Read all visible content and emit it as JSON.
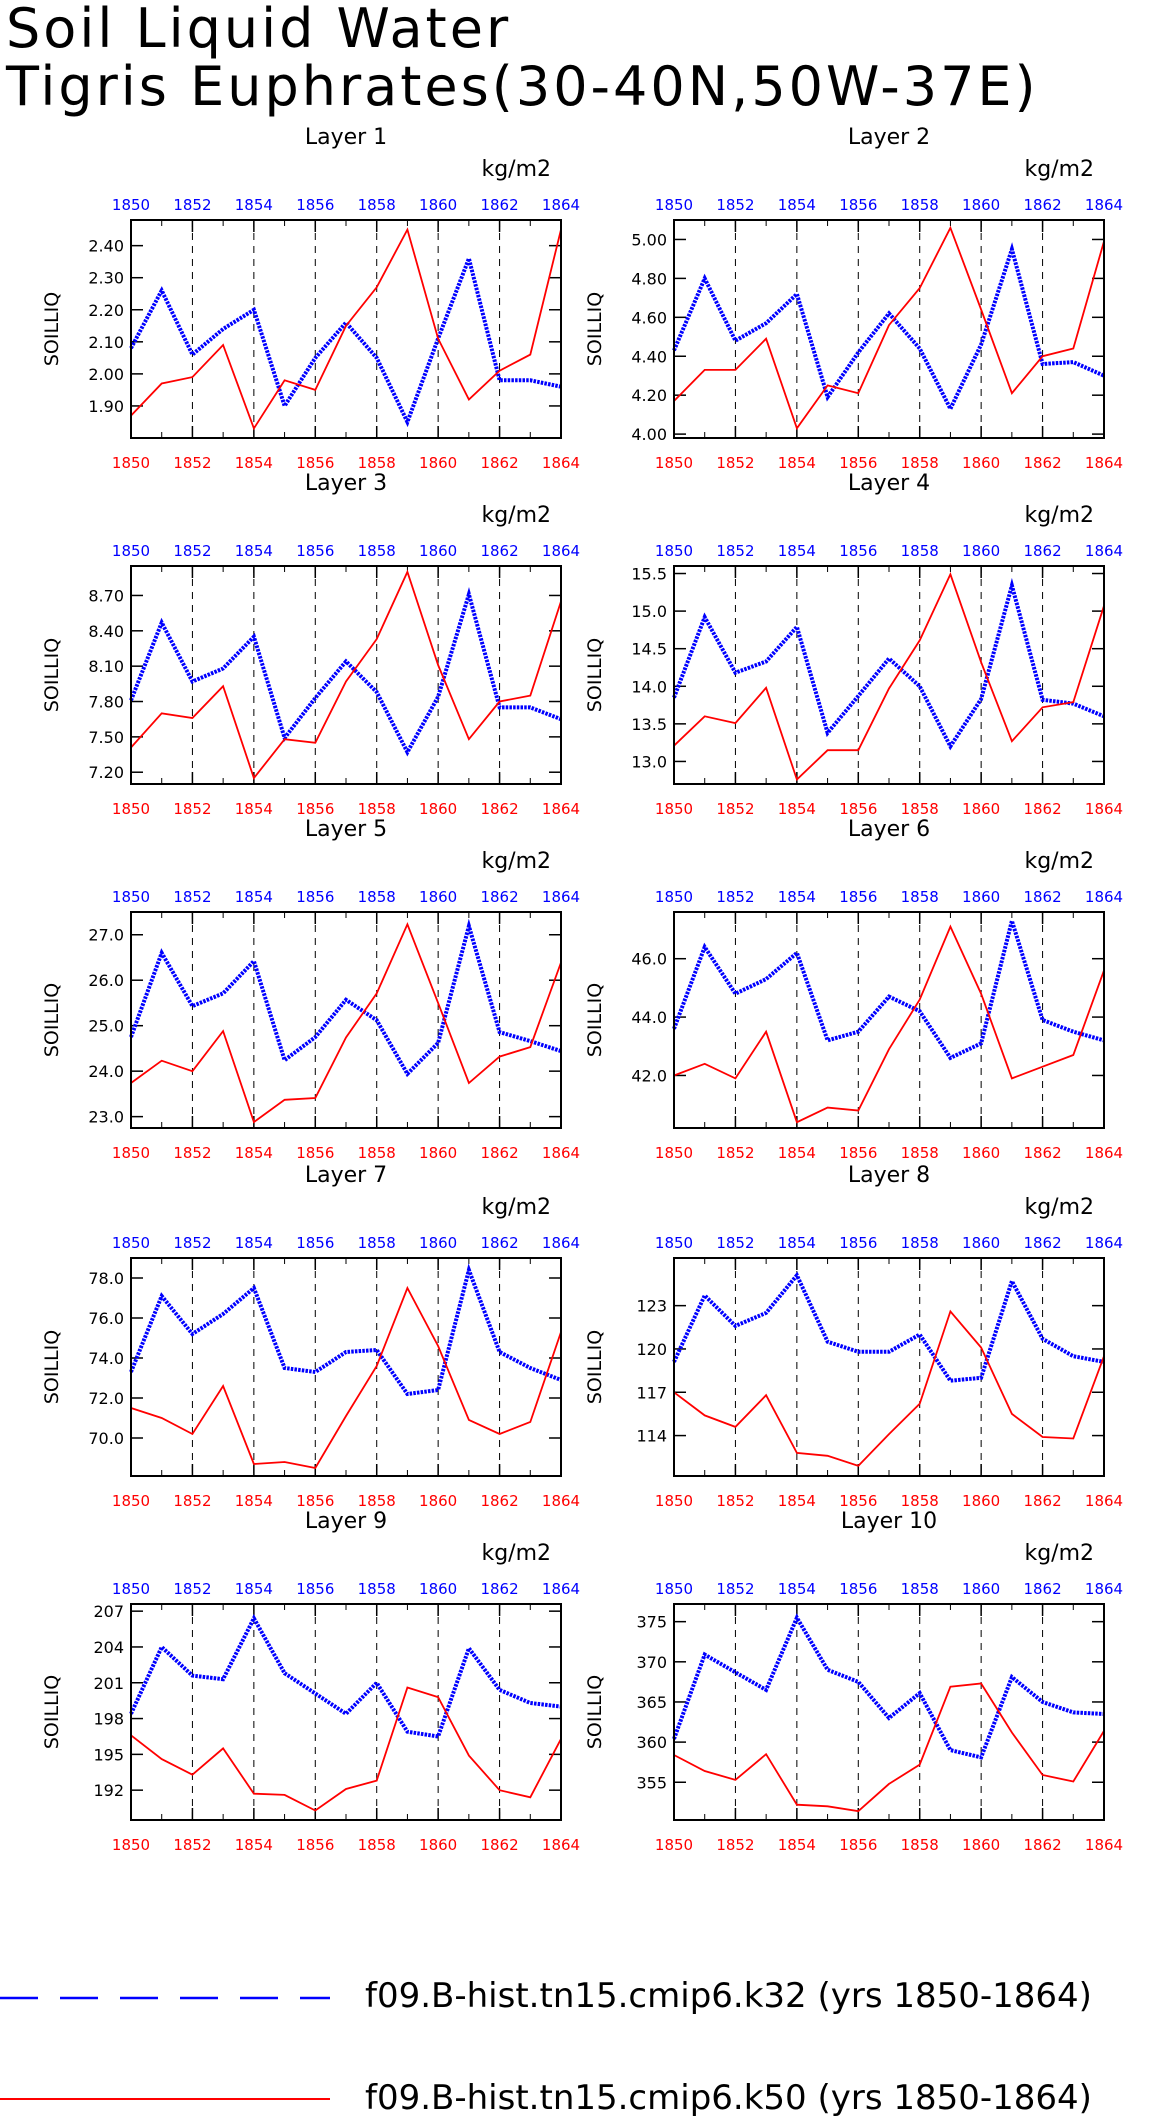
{
  "title": [
    "Soil Liquid Water",
    "Tigris Euphrates(30-40N,50W-37E)"
  ],
  "colors": {
    "blue": "#0000ff",
    "red": "#ff0000",
    "axis": "#000000"
  },
  "legend": [
    {
      "label": "f09.B-hist.tn15.cmip6.k32 (yrs 1850-1864)",
      "color": "#0000ff",
      "style": "dashed"
    },
    {
      "label": "f09.B-hist.tn15.cmip6.k50 (yrs 1850-1864)",
      "color": "#ff0000",
      "style": "solid"
    }
  ],
  "chart_data": [
    {
      "type": "line",
      "title": "Layer 1",
      "ylabel": "SOILLIQ",
      "units": "kg/m2",
      "ylim": [
        1.8,
        2.48
      ],
      "yticks": [
        1.9,
        2.0,
        2.1,
        2.2,
        2.3,
        2.4
      ],
      "ydec": 2,
      "x": [
        1850,
        1851,
        1852,
        1853,
        1854,
        1855,
        1856,
        1857,
        1858,
        1859,
        1860,
        1861,
        1862,
        1863,
        1864
      ],
      "xticks": [
        1850,
        1852,
        1854,
        1856,
        1858,
        1860,
        1862,
        1864
      ],
      "vgrid": [
        1852,
        1854,
        1856,
        1858,
        1860,
        1862
      ],
      "series": [
        {
          "name": "f09.B-hist.tn15.cmip6.k32 (yrs 1850-1864)",
          "color": "#0000ff",
          "style": "dotted",
          "values": [
            2.08,
            2.26,
            2.06,
            2.14,
            2.2,
            1.9,
            2.05,
            2.16,
            2.05,
            1.85,
            2.11,
            2.36,
            1.98,
            1.98,
            1.96
          ]
        },
        {
          "name": "f09.B-hist.tn15.cmip6.k50 (yrs 1850-1864)",
          "color": "#ff0000",
          "style": "solid",
          "values": [
            1.87,
            1.97,
            1.99,
            2.09,
            1.83,
            1.98,
            1.95,
            2.15,
            2.27,
            2.45,
            2.11,
            1.92,
            2.01,
            2.06,
            2.45
          ]
        }
      ]
    },
    {
      "type": "line",
      "title": "Layer 2",
      "ylabel": "SOILLIQ",
      "units": "kg/m2",
      "ylim": [
        3.98,
        5.1
      ],
      "yticks": [
        4.0,
        4.2,
        4.4,
        4.6,
        4.8,
        5.0
      ],
      "ydec": 2,
      "x": [
        1850,
        1851,
        1852,
        1853,
        1854,
        1855,
        1856,
        1857,
        1858,
        1859,
        1860,
        1861,
        1862,
        1863,
        1864
      ],
      "xticks": [
        1850,
        1852,
        1854,
        1856,
        1858,
        1860,
        1862,
        1864
      ],
      "vgrid": [
        1852,
        1854,
        1856,
        1858,
        1860,
        1862
      ],
      "series": [
        {
          "name": "f09.B-hist.tn15.cmip6.k32 (yrs 1850-1864)",
          "color": "#0000ff",
          "style": "dotted",
          "values": [
            4.43,
            4.8,
            4.48,
            4.57,
            4.72,
            4.19,
            4.42,
            4.62,
            4.44,
            4.13,
            4.46,
            4.95,
            4.36,
            4.37,
            4.3
          ]
        },
        {
          "name": "f09.B-hist.tn15.cmip6.k50 (yrs 1850-1864)",
          "color": "#ff0000",
          "style": "solid",
          "values": [
            4.17,
            4.33,
            4.33,
            4.49,
            4.03,
            4.25,
            4.21,
            4.56,
            4.75,
            5.06,
            4.64,
            4.21,
            4.4,
            4.44,
            4.99
          ]
        }
      ]
    },
    {
      "type": "line",
      "title": "Layer 3",
      "ylabel": "SOILLIQ",
      "units": "kg/m2",
      "ylim": [
        7.1,
        8.95
      ],
      "yticks": [
        7.2,
        7.5,
        7.8,
        8.1,
        8.4,
        8.7
      ],
      "ydec": 2,
      "x": [
        1850,
        1851,
        1852,
        1853,
        1854,
        1855,
        1856,
        1857,
        1858,
        1859,
        1860,
        1861,
        1862,
        1863,
        1864
      ],
      "xticks": [
        1850,
        1852,
        1854,
        1856,
        1858,
        1860,
        1862,
        1864
      ],
      "vgrid": [
        1852,
        1854,
        1856,
        1858,
        1860,
        1862
      ],
      "series": [
        {
          "name": "f09.B-hist.tn15.cmip6.k32 (yrs 1850-1864)",
          "color": "#0000ff",
          "style": "dotted",
          "values": [
            7.81,
            8.47,
            7.97,
            8.08,
            8.35,
            7.49,
            7.83,
            8.14,
            7.88,
            7.37,
            7.84,
            8.71,
            7.75,
            7.75,
            7.65
          ]
        },
        {
          "name": "f09.B-hist.tn15.cmip6.k50 (yrs 1850-1864)",
          "color": "#ff0000",
          "style": "solid",
          "values": [
            7.41,
            7.7,
            7.66,
            7.93,
            7.15,
            7.48,
            7.45,
            7.97,
            8.33,
            8.9,
            8.11,
            7.48,
            7.8,
            7.85,
            8.65
          ]
        }
      ]
    },
    {
      "type": "line",
      "title": "Layer 4",
      "ylabel": "SOILLIQ",
      "units": "kg/m2",
      "ylim": [
        12.7,
        15.6
      ],
      "yticks": [
        13.0,
        13.5,
        14.0,
        14.5,
        15.0,
        15.5
      ],
      "ydec": 1,
      "x": [
        1850,
        1851,
        1852,
        1853,
        1854,
        1855,
        1856,
        1857,
        1858,
        1859,
        1860,
        1861,
        1862,
        1863,
        1864
      ],
      "xticks": [
        1850,
        1852,
        1854,
        1856,
        1858,
        1860,
        1862,
        1864
      ],
      "vgrid": [
        1852,
        1854,
        1856,
        1858,
        1860,
        1862
      ],
      "series": [
        {
          "name": "f09.B-hist.tn15.cmip6.k32 (yrs 1850-1864)",
          "color": "#0000ff",
          "style": "dotted",
          "values": [
            13.85,
            14.92,
            14.18,
            14.33,
            14.79,
            13.38,
            13.87,
            14.37,
            14.0,
            13.2,
            13.83,
            15.34,
            13.82,
            13.77,
            13.6
          ]
        },
        {
          "name": "f09.B-hist.tn15.cmip6.k50 (yrs 1850-1864)",
          "color": "#ff0000",
          "style": "solid",
          "values": [
            13.21,
            13.6,
            13.51,
            13.98,
            12.76,
            13.15,
            13.15,
            13.97,
            14.61,
            15.49,
            14.32,
            13.27,
            13.72,
            13.79,
            15.07
          ]
        }
      ]
    },
    {
      "type": "line",
      "title": "Layer 5",
      "ylabel": "SOILLIQ",
      "units": "kg/m2",
      "ylim": [
        22.75,
        27.5
      ],
      "yticks": [
        23.0,
        24.0,
        25.0,
        26.0,
        27.0
      ],
      "ydec": 1,
      "x": [
        1850,
        1851,
        1852,
        1853,
        1854,
        1855,
        1856,
        1857,
        1858,
        1859,
        1860,
        1861,
        1862,
        1863,
        1864
      ],
      "xticks": [
        1850,
        1852,
        1854,
        1856,
        1858,
        1860,
        1862,
        1864
      ],
      "vgrid": [
        1852,
        1854,
        1856,
        1858,
        1860,
        1862
      ],
      "series": [
        {
          "name": "f09.B-hist.tn15.cmip6.k32 (yrs 1850-1864)",
          "color": "#0000ff",
          "style": "dotted",
          "values": [
            24.75,
            26.6,
            25.43,
            25.71,
            26.42,
            24.24,
            24.75,
            25.57,
            25.12,
            23.94,
            24.62,
            27.19,
            24.86,
            24.66,
            24.44
          ]
        },
        {
          "name": "f09.B-hist.tn15.cmip6.k50 (yrs 1850-1864)",
          "color": "#ff0000",
          "style": "solid",
          "values": [
            23.74,
            24.23,
            24.0,
            24.88,
            22.88,
            23.37,
            23.41,
            24.74,
            25.71,
            27.23,
            25.5,
            23.74,
            24.32,
            24.53,
            26.39
          ]
        }
      ]
    },
    {
      "type": "line",
      "title": "Layer 6",
      "ylabel": "SOILLIQ",
      "units": "kg/m2",
      "ylim": [
        40.2,
        47.6
      ],
      "yticks": [
        42.0,
        44.0,
        46.0
      ],
      "ydec": 1,
      "x": [
        1850,
        1851,
        1852,
        1853,
        1854,
        1855,
        1856,
        1857,
        1858,
        1859,
        1860,
        1861,
        1862,
        1863,
        1864
      ],
      "xticks": [
        1850,
        1852,
        1854,
        1856,
        1858,
        1860,
        1862,
        1864
      ],
      "vgrid": [
        1852,
        1854,
        1856,
        1858,
        1860,
        1862
      ],
      "series": [
        {
          "name": "f09.B-hist.tn15.cmip6.k32 (yrs 1850-1864)",
          "color": "#0000ff",
          "style": "dotted",
          "values": [
            43.6,
            46.4,
            44.8,
            45.3,
            46.2,
            43.2,
            43.5,
            44.7,
            44.2,
            42.6,
            43.1,
            47.3,
            43.9,
            43.5,
            43.2
          ]
        },
        {
          "name": "f09.B-hist.tn15.cmip6.k50 (yrs 1850-1864)",
          "color": "#ff0000",
          "style": "solid",
          "values": [
            42.0,
            42.4,
            41.9,
            43.5,
            40.4,
            40.9,
            40.8,
            42.9,
            44.6,
            47.1,
            44.8,
            41.9,
            42.3,
            42.7,
            45.6
          ]
        }
      ]
    },
    {
      "type": "line",
      "title": "Layer 7",
      "ylabel": "SOILLIQ",
      "units": "kg/m2",
      "ylim": [
        68.1,
        79.0
      ],
      "yticks": [
        70.0,
        72.0,
        74.0,
        76.0,
        78.0
      ],
      "ydec": 1,
      "x": [
        1850,
        1851,
        1852,
        1853,
        1854,
        1855,
        1856,
        1857,
        1858,
        1859,
        1860,
        1861,
        1862,
        1863,
        1864
      ],
      "xticks": [
        1850,
        1852,
        1854,
        1856,
        1858,
        1860,
        1862,
        1864
      ],
      "vgrid": [
        1852,
        1854,
        1856,
        1858,
        1860,
        1862
      ],
      "series": [
        {
          "name": "f09.B-hist.tn15.cmip6.k32 (yrs 1850-1864)",
          "color": "#0000ff",
          "style": "dotted",
          "values": [
            73.3,
            77.1,
            75.2,
            76.2,
            77.5,
            73.5,
            73.3,
            74.3,
            74.4,
            72.2,
            72.4,
            78.4,
            74.3,
            73.5,
            72.9
          ]
        },
        {
          "name": "f09.B-hist.tn15.cmip6.k50 (yrs 1850-1864)",
          "color": "#ff0000",
          "style": "solid",
          "values": [
            71.5,
            71.0,
            70.2,
            72.6,
            68.7,
            68.8,
            68.5,
            71.1,
            73.6,
            77.5,
            74.6,
            70.9,
            70.2,
            70.8,
            75.3
          ]
        }
      ]
    },
    {
      "type": "line",
      "title": "Layer 8",
      "ylabel": "SOILLIQ",
      "units": "kg/m2",
      "ylim": [
        111.2,
        126.3
      ],
      "yticks": [
        114,
        117,
        120,
        123
      ],
      "ydec": 0,
      "x": [
        1850,
        1851,
        1852,
        1853,
        1854,
        1855,
        1856,
        1857,
        1858,
        1859,
        1860,
        1861,
        1862,
        1863,
        1864
      ],
      "xticks": [
        1850,
        1852,
        1854,
        1856,
        1858,
        1860,
        1862,
        1864
      ],
      "vgrid": [
        1852,
        1854,
        1856,
        1858,
        1860,
        1862
      ],
      "series": [
        {
          "name": "f09.B-hist.tn15.cmip6.k32 (yrs 1850-1864)",
          "color": "#0000ff",
          "style": "dotted",
          "values": [
            119.1,
            123.7,
            121.6,
            122.5,
            125.1,
            120.5,
            119.8,
            119.8,
            121.0,
            117.8,
            118.0,
            124.7,
            120.7,
            119.5,
            119.1
          ]
        },
        {
          "name": "f09.B-hist.tn15.cmip6.k50 (yrs 1850-1864)",
          "color": "#ff0000",
          "style": "solid",
          "values": [
            117.0,
            115.4,
            114.6,
            116.8,
            112.8,
            112.6,
            111.9,
            114.1,
            116.2,
            122.6,
            120.1,
            115.5,
            113.9,
            113.8,
            119.5
          ]
        }
      ]
    },
    {
      "type": "line",
      "title": "Layer 9",
      "ylabel": "SOILLIQ",
      "units": "kg/m2",
      "ylim": [
        189.5,
        207.6
      ],
      "yticks": [
        192,
        195,
        198,
        201,
        204,
        207
      ],
      "ydec": 0,
      "x": [
        1850,
        1851,
        1852,
        1853,
        1854,
        1855,
        1856,
        1857,
        1858,
        1859,
        1860,
        1861,
        1862,
        1863,
        1864
      ],
      "xticks": [
        1850,
        1852,
        1854,
        1856,
        1858,
        1860,
        1862,
        1864
      ],
      "vgrid": [
        1852,
        1854,
        1856,
        1858,
        1860,
        1862
      ],
      "series": [
        {
          "name": "f09.B-hist.tn15.cmip6.k32 (yrs 1850-1864)",
          "color": "#0000ff",
          "style": "dotted",
          "values": [
            198.4,
            204.0,
            201.6,
            201.3,
            206.4,
            201.8,
            200.1,
            198.4,
            201.0,
            196.9,
            196.5,
            203.9,
            200.4,
            199.3,
            199.0
          ]
        },
        {
          "name": "f09.B-hist.tn15.cmip6.k50 (yrs 1850-1864)",
          "color": "#ff0000",
          "style": "solid",
          "values": [
            196.6,
            194.6,
            193.3,
            195.5,
            191.7,
            191.6,
            190.3,
            192.1,
            192.8,
            200.6,
            199.8,
            194.9,
            192.0,
            191.4,
            196.3
          ]
        }
      ]
    },
    {
      "type": "line",
      "title": "Layer 10",
      "ylabel": "SOILLIQ",
      "units": "kg/m2",
      "ylim": [
        350.3,
        377.2
      ],
      "yticks": [
        355,
        360,
        365,
        370,
        375
      ],
      "ydec": 0,
      "x": [
        1850,
        1851,
        1852,
        1853,
        1854,
        1855,
        1856,
        1857,
        1858,
        1859,
        1860,
        1861,
        1862,
        1863,
        1864
      ],
      "xticks": [
        1850,
        1852,
        1854,
        1856,
        1858,
        1860,
        1862,
        1864
      ],
      "vgrid": [
        1852,
        1854,
        1856,
        1858,
        1860,
        1862
      ],
      "series": [
        {
          "name": "f09.B-hist.tn15.cmip6.k32 (yrs 1850-1864)",
          "color": "#0000ff",
          "style": "dotted",
          "values": [
            360.4,
            370.9,
            368.7,
            366.5,
            375.5,
            369.0,
            367.5,
            363.0,
            366.1,
            359.0,
            358.1,
            368.1,
            365.0,
            363.7,
            363.5
          ]
        },
        {
          "name": "f09.B-hist.tn15.cmip6.k50 (yrs 1850-1864)",
          "color": "#ff0000",
          "style": "solid",
          "values": [
            358.4,
            356.4,
            355.3,
            358.5,
            352.2,
            352.0,
            351.4,
            354.8,
            357.2,
            366.9,
            367.3,
            361.2,
            355.9,
            355.1,
            361.4
          ]
        }
      ]
    }
  ]
}
